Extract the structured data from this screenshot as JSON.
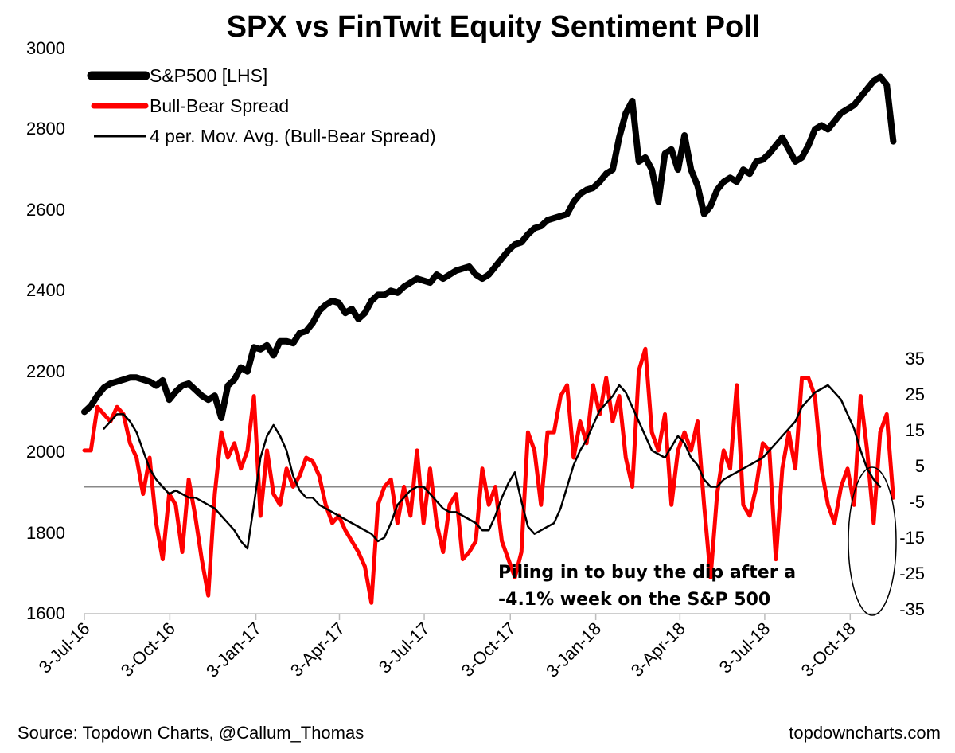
{
  "chart_data": {
    "type": "line",
    "title": "SPX vs FinTwit Equity Sentiment Poll",
    "left_axis": {
      "min": 1600,
      "max": 3000,
      "ticks": [
        3000,
        2800,
        2600,
        2400,
        2200,
        2000,
        1800,
        1600
      ]
    },
    "right_axis": {
      "min": -35,
      "max": 35,
      "ticks": [
        35,
        25,
        15,
        5,
        -5,
        -15,
        -25,
        -35
      ]
    },
    "x_range": [
      0,
      122
    ],
    "x_ticks": [
      {
        "label": "3-Jul-16",
        "week": 0
      },
      {
        "label": "3-Oct-16",
        "week": 13.1
      },
      {
        "label": "3-Jan-17",
        "week": 26.3
      },
      {
        "label": "3-Apr-17",
        "week": 39.1
      },
      {
        "label": "3-Jul-17",
        "week": 52.1
      },
      {
        "label": "3-Oct-17",
        "week": 65.3
      },
      {
        "label": "3-Jan-18",
        "week": 78.4
      },
      {
        "label": "3-Apr-18",
        "week": 91.3
      },
      {
        "label": "3-Jul-18",
        "week": 104.3
      },
      {
        "label": "3-Oct-18",
        "week": 117.4
      }
    ],
    "zero_line_value": 0,
    "legend": [
      {
        "label": "S&P500 [LHS]",
        "color": "#000000",
        "style": "thick"
      },
      {
        "label": "Bull-Bear Spread",
        "color": "#ff0000",
        "style": "medium"
      },
      {
        "label": "4 per. Mov. Avg. (Bull-Bear Spread)",
        "color": "#000000",
        "style": "thin"
      }
    ],
    "series": [
      {
        "name": "S&P500 [LHS]",
        "axis": "left",
        "color": "#000000",
        "values": [
          2100,
          2115,
          2140,
          2160,
          2170,
          2175,
          2180,
          2185,
          2185,
          2180,
          2175,
          2165,
          2178,
          2130,
          2150,
          2165,
          2170,
          2155,
          2140,
          2130,
          2140,
          2085,
          2165,
          2180,
          2210,
          2200,
          2260,
          2255,
          2265,
          2240,
          2275,
          2275,
          2270,
          2295,
          2300,
          2320,
          2350,
          2365,
          2375,
          2370,
          2345,
          2355,
          2330,
          2345,
          2375,
          2390,
          2390,
          2400,
          2395,
          2410,
          2420,
          2430,
          2425,
          2420,
          2440,
          2430,
          2440,
          2450,
          2455,
          2460,
          2440,
          2430,
          2440,
          2460,
          2480,
          2500,
          2515,
          2520,
          2540,
          2555,
          2560,
          2575,
          2580,
          2585,
          2590,
          2620,
          2640,
          2650,
          2655,
          2670,
          2690,
          2700,
          2780,
          2840,
          2870,
          2720,
          2730,
          2700,
          2620,
          2740,
          2750,
          2700,
          2785,
          2700,
          2660,
          2590,
          2610,
          2650,
          2670,
          2680,
          2670,
          2700,
          2690,
          2720,
          2725,
          2740,
          2760,
          2780,
          2750,
          2720,
          2730,
          2760,
          2800,
          2810,
          2800,
          2820,
          2840,
          2850,
          2860,
          2880,
          2900,
          2920,
          2930,
          2910,
          2770
        ]
      },
      {
        "name": "Bull-Bear Spread",
        "axis": "right",
        "color": "#ff0000",
        "values": [
          10,
          10,
          22,
          20,
          18,
          22,
          20,
          12,
          8,
          -2,
          8,
          -10,
          -20,
          -2,
          -5,
          -18,
          2,
          -8,
          -20,
          -30,
          -2,
          15,
          8,
          12,
          5,
          10,
          25,
          -8,
          10,
          -2,
          -5,
          5,
          0,
          3,
          8,
          7,
          3,
          -5,
          -10,
          -8,
          -12,
          -15,
          -18,
          -22,
          -32,
          -5,
          0,
          2,
          -10,
          0,
          -8,
          10,
          -10,
          5,
          -10,
          -18,
          -5,
          -2,
          -20,
          -18,
          -15,
          5,
          -5,
          0,
          -15,
          -20,
          -25,
          -18,
          15,
          10,
          -5,
          15,
          15,
          25,
          28,
          8,
          18,
          12,
          28,
          20,
          30,
          18,
          25,
          8,
          0,
          32,
          38,
          15,
          10,
          20,
          -5,
          10,
          15,
          10,
          18,
          -5,
          -25,
          -2,
          10,
          5,
          28,
          -5,
          -8,
          0,
          12,
          10,
          -20,
          5,
          15,
          5,
          30,
          30,
          25,
          5,
          -5,
          -10,
          0,
          5,
          -5,
          25,
          10,
          -10,
          15,
          20,
          -3
        ]
      },
      {
        "name": "4 per. Mov. Avg. (Bull-Bear Spread)",
        "axis": "right",
        "color": "#000000",
        "values": [
          null,
          null,
          null,
          16,
          18,
          20,
          20,
          18,
          15,
          10,
          5,
          2,
          0,
          -2,
          -1,
          -2,
          -3,
          -3,
          -4,
          -5,
          -6,
          -8,
          -10,
          -12,
          -15,
          -17,
          -5,
          8,
          14,
          17,
          14,
          10,
          3,
          -1,
          -3,
          -3,
          -5,
          -6,
          -7,
          -8,
          -9,
          -10,
          -11,
          -12,
          -13,
          -15,
          -14,
          -10,
          -5,
          -3,
          -1,
          0,
          0,
          -2,
          -4,
          -6,
          -7,
          -7,
          -8,
          -9,
          -10,
          -12,
          -12,
          -8,
          -3,
          1,
          4,
          -4,
          -11,
          -13,
          -12,
          -11,
          -10,
          -6,
          0,
          6,
          10,
          13,
          17,
          21,
          23,
          25,
          28,
          26,
          22,
          18,
          14,
          10,
          9,
          8,
          11,
          14,
          12,
          8,
          6,
          2,
          0,
          0,
          2,
          3,
          4,
          5,
          6,
          7,
          8,
          10,
          12,
          14,
          16,
          18,
          22,
          24,
          26,
          27,
          28,
          26,
          24,
          20,
          16,
          10,
          5,
          2,
          0
        ]
      }
    ],
    "annotation": {
      "line1": "Piling in to buy the dip after a",
      "line2": "-4.1% week on the S&P 500"
    }
  },
  "footer": {
    "source": "Source: Topdown Charts, @Callum_Thomas",
    "site": "topdowncharts.com"
  }
}
